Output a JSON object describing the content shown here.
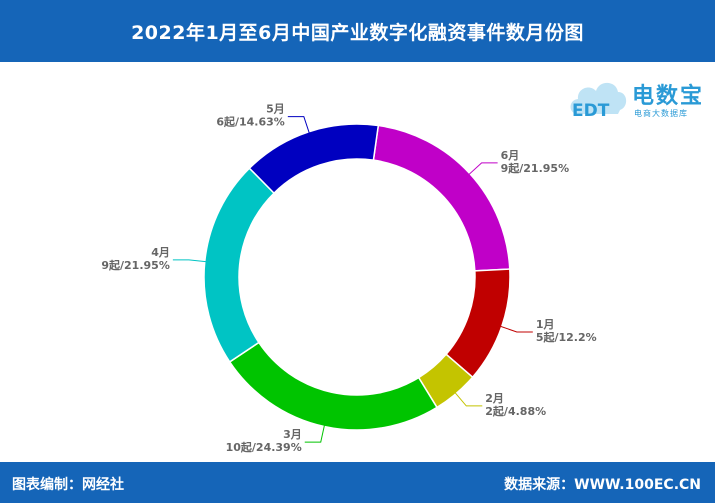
{
  "header": {
    "title": "2022年1月至6月中国产业数字化融资事件数月份图"
  },
  "footer": {
    "left": "图表编制：网经社",
    "right": "数据来源：WWW.100EC.CN"
  },
  "logo": {
    "name": "电数宝",
    "sub": "电商大数据库",
    "mark": "EDT"
  },
  "chart_data": {
    "type": "pie",
    "donut": true,
    "slices": [
      {
        "category": "6月",
        "value": 9,
        "label": "9起/21.95%",
        "color": "#c000c8"
      },
      {
        "category": "1月",
        "value": 5,
        "label": "5起/12.2%",
        "color": "#c00000"
      },
      {
        "category": "2月",
        "value": 2,
        "label": "2起/4.88%",
        "color": "#c4c400"
      },
      {
        "category": "3月",
        "value": 10,
        "label": "10起/24.39%",
        "color": "#00c400"
      },
      {
        "category": "4月",
        "value": 9,
        "label": "9起/21.95%",
        "color": "#00c4c4"
      },
      {
        "category": "5月",
        "value": 6,
        "label": "6起/14.63%",
        "color": "#0000c0"
      }
    ]
  }
}
